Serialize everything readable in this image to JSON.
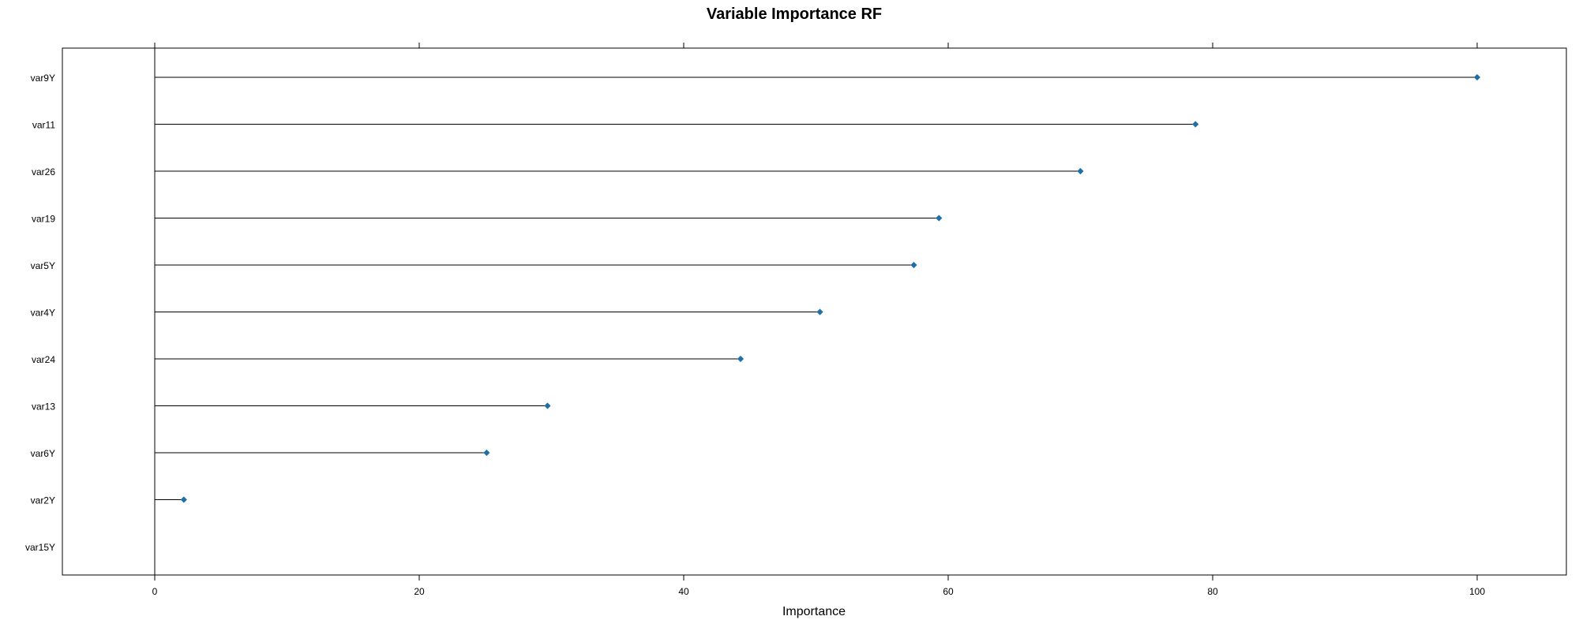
{
  "chart_data": {
    "type": "lollipop",
    "title": "Variable Importance RF",
    "xlabel": "Importance",
    "ylabel": "",
    "xlim": [
      -7,
      107
    ],
    "xticks": [
      0,
      20,
      40,
      60,
      80,
      100
    ],
    "categories": [
      "var9Y",
      "var11",
      "var26",
      "var19",
      "var5Y",
      "var4Y",
      "var24",
      "var13",
      "var6Y",
      "var2Y",
      "var15Y"
    ],
    "values": [
      100,
      78.7,
      70.0,
      59.3,
      57.4,
      50.3,
      44.3,
      29.7,
      25.1,
      2.2,
      0
    ],
    "grid": false,
    "legend": "none",
    "colors": {
      "point": "#1f6fa8",
      "stem": "#000000",
      "axis": "#000000"
    }
  }
}
